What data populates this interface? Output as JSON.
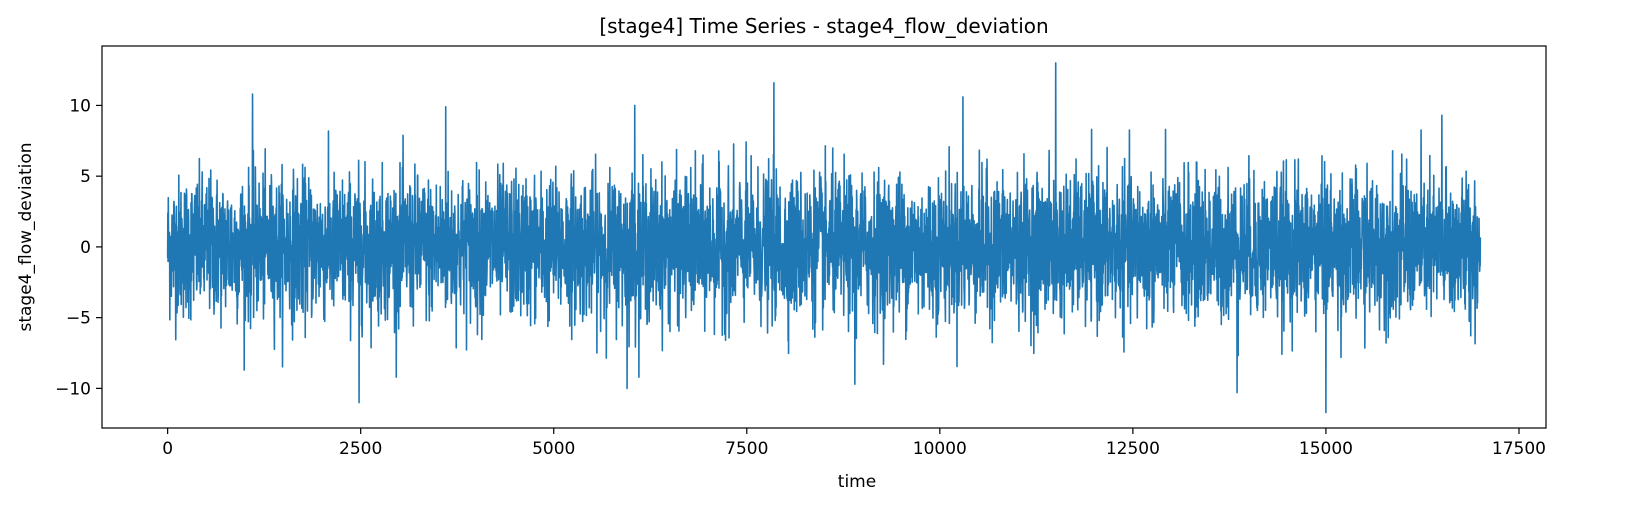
{
  "chart_data": {
    "type": "line",
    "title": "[stage4] Time Series - stage4_flow_deviation",
    "xlabel": "time",
    "ylabel": "stage4_flow_deviation",
    "xlim": [
      -850,
      17850
    ],
    "ylim": [
      -12.8,
      14.2
    ],
    "xticks": [
      {
        "value": 0,
        "label": "0"
      },
      {
        "value": 2500,
        "label": "2500"
      },
      {
        "value": 5000,
        "label": "5000"
      },
      {
        "value": 7500,
        "label": "7500"
      },
      {
        "value": 10000,
        "label": "10000"
      },
      {
        "value": 12500,
        "label": "12500"
      },
      {
        "value": 15000,
        "label": "15000"
      },
      {
        "value": 17500,
        "label": "17500"
      }
    ],
    "yticks": [
      {
        "value": -10,
        "label": "−10"
      },
      {
        "value": -5,
        "label": "−5"
      },
      {
        "value": 0,
        "label": "0"
      },
      {
        "value": 5,
        "label": "5"
      },
      {
        "value": 10,
        "label": "10"
      }
    ],
    "grid": false,
    "legend": "none",
    "series": [
      {
        "color": "#1f77b4",
        "x_start": 0,
        "x_end": 17000,
        "mean": 0,
        "std_estimate": 2.5,
        "extremes": [
          {
            "x": 1100,
            "y": 10.8
          },
          {
            "x": 2480,
            "y": -11.0
          },
          {
            "x": 3600,
            "y": 9.9
          },
          {
            "x": 5950,
            "y": -10.0
          },
          {
            "x": 6050,
            "y": 10.0
          },
          {
            "x": 7850,
            "y": 11.6
          },
          {
            "x": 8900,
            "y": -9.7
          },
          {
            "x": 10300,
            "y": 10.6
          },
          {
            "x": 11500,
            "y": 13.0
          },
          {
            "x": 13850,
            "y": -10.3
          },
          {
            "x": 15000,
            "y": -11.7
          },
          {
            "x": 16500,
            "y": 9.3
          }
        ]
      }
    ]
  }
}
